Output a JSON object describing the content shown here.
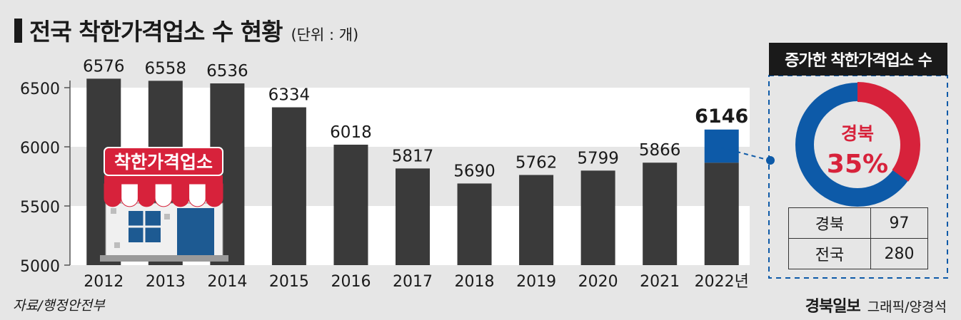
{
  "header": {
    "title": "전국 착한가격업소 수 현황",
    "unit": "(단위 : 개)"
  },
  "chart_data": {
    "type": "bar",
    "title": "전국 착한가격업소 수 현황",
    "unit": "(단위 : 개)",
    "categories": [
      "2012",
      "2013",
      "2014",
      "2015",
      "2016",
      "2017",
      "2018",
      "2019",
      "2020",
      "2021",
      "2022년"
    ],
    "values": [
      6576,
      6558,
      6536,
      6334,
      6018,
      5817,
      5690,
      5762,
      5799,
      5866,
      6146
    ],
    "value_labels": [
      "6576",
      "6558",
      "6536",
      "6334",
      "6018",
      "5817",
      "5690",
      "5762",
      "5799",
      "5866",
      "6146"
    ],
    "ylim": [
      5000,
      6600
    ],
    "yticks": [
      5000,
      5500,
      6000,
      6500
    ],
    "ytick_labels": [
      "5000",
      "5500",
      "6000",
      "6500"
    ],
    "highlight_increase": {
      "category": "2022년",
      "from": 5866,
      "to": 6146
    },
    "bar_color": "#3a3a3a",
    "increase_color": "#0d5aa8",
    "band_color": "#ffffff",
    "grid": false
  },
  "shop_sign": {
    "label": "착한가격업소"
  },
  "increase_panel": {
    "title": "증가한 착한가격업소 수",
    "donut": {
      "label": "경북",
      "percent_label": "35%",
      "share": 0.35,
      "highlight_color": "#d7223b",
      "other_color": "#0d5aa8"
    },
    "rows": [
      {
        "label": "경북",
        "value": "97"
      },
      {
        "label": "전국",
        "value": "280"
      }
    ]
  },
  "footer": {
    "source": "자료/행정안전부",
    "logo": "경북일보",
    "credit": "그래픽/양경석"
  }
}
